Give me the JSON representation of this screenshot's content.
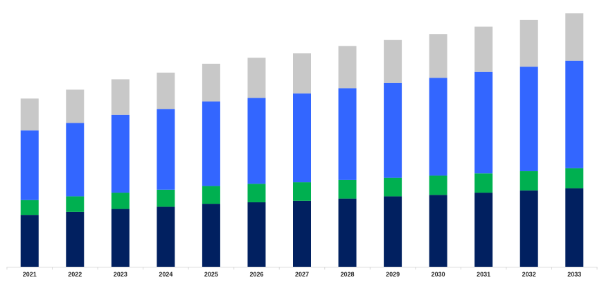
{
  "chart_data": {
    "type": "bar",
    "stacked": true,
    "title": "",
    "xlabel": "",
    "ylabel": "",
    "categories": [
      "2021",
      "2022",
      "2023",
      "2024",
      "2025",
      "2026",
      "2027",
      "2028",
      "2029",
      "2030",
      "2031",
      "2032",
      "2033"
    ],
    "series": [
      {
        "color": "#012060",
        "values": [
          70,
          74,
          78,
          81,
          85,
          87,
          89,
          92,
          95,
          97,
          100,
          103,
          106
        ]
      },
      {
        "color": "#00B050",
        "values": [
          20,
          21,
          22,
          23,
          24,
          25,
          25,
          25,
          25,
          26,
          26,
          26,
          27
        ]
      },
      {
        "color": "#3366FF",
        "values": [
          94,
          99,
          105,
          109,
          114,
          116,
          120,
          124,
          128,
          132,
          137,
          141,
          145
        ]
      },
      {
        "color": "#C8C8C8",
        "values": [
          43,
          45,
          48,
          49,
          51,
          54,
          54,
          57,
          58,
          59,
          61,
          63,
          64
        ]
      }
    ],
    "ylim": [
      0,
      360
    ],
    "grid": false,
    "legend": "none"
  }
}
